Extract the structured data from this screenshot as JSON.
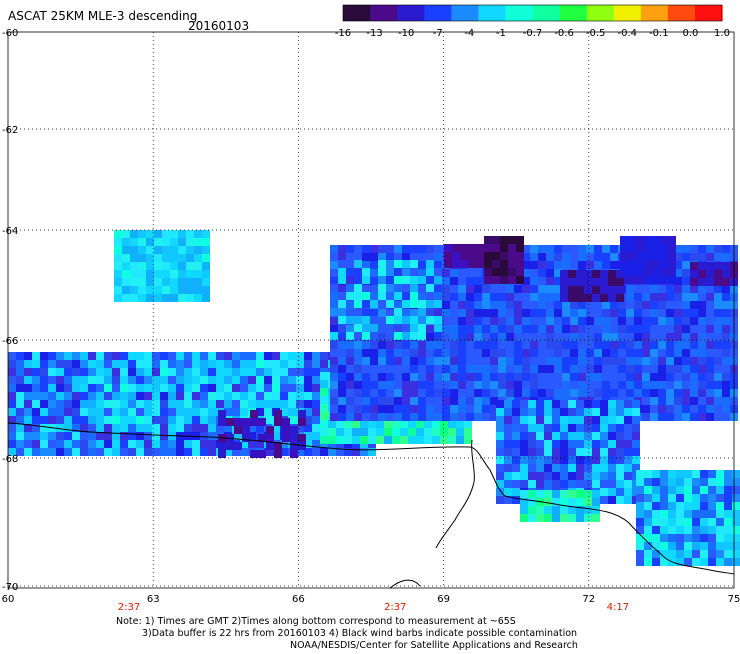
{
  "header": {
    "title": "ASCAT 25KM MLE-3 descending",
    "date": "20160103"
  },
  "colorbar": {
    "colors": [
      "#2a0a3a",
      "#4a0a8a",
      "#2a1ad0",
      "#1a40ff",
      "#1a8cff",
      "#10d8ff",
      "#10ffd8",
      "#10ffa0",
      "#20ff40",
      "#90ff10",
      "#f0f000",
      "#ffa010",
      "#ff4a10",
      "#ff1010"
    ],
    "labels": [
      "-16",
      "-13",
      "-10",
      "-7",
      "-4",
      "-1",
      "-0.7",
      "-0.6",
      "-0.5",
      "-0.4",
      "-0.1",
      "0.0",
      "1.0"
    ]
  },
  "axes": {
    "x_ticks": [
      "60",
      "63",
      "66",
      "69",
      "72",
      "75"
    ],
    "y_ticks": [
      "-60",
      "-62",
      "-64",
      "-66",
      "-68",
      "-70"
    ]
  },
  "time_labels": [
    {
      "text": "2:37",
      "lon": 62.5
    },
    {
      "text": "2:37",
      "lon": 68.0
    },
    {
      "text": "4:17",
      "lon": 72.6
    }
  ],
  "notes": {
    "line1": "Note: 1) Times are GMT 2)Times along bottom correspond to measurement at ~65S",
    "line2": "3)Data buffer is 22 hrs from 20160103 4) Black wind barbs indicate possible contamination",
    "line3": "NOAA/NESDIS/Center for Satellite Applications and Research"
  }
}
